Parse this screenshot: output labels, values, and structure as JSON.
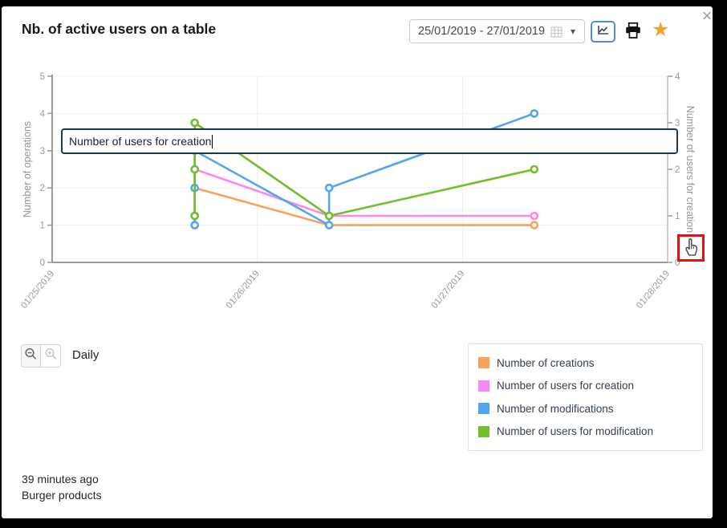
{
  "dialog": {
    "title": "Nb. of active users on a table",
    "date_range": {
      "value": "25/01/2019 - 27/01/2019"
    },
    "icons": {
      "dropdown_caret": "▾",
      "favorite_star": "★",
      "close": "×"
    }
  },
  "tooltip_box": {
    "text": "Number of users for creation"
  },
  "zoom_controls": {
    "granularity_label": "Daily"
  },
  "footer": {
    "last_updated": "39 minutes ago",
    "dataset": "Burger products"
  },
  "colors": {
    "accent_blue": "#4A90E2",
    "star_gold": "#F0A330",
    "red_highlight": "#E01212",
    "axis_text": "#9B9B9B",
    "axis_line": "#9A9A9A",
    "gridline": "#F0F0F0"
  },
  "chart_data": {
    "type": "line",
    "x_axis": {
      "tick_labels": [
        "01/25/2019",
        "01/26/2019",
        "01/27/2019",
        "01/28/2019"
      ],
      "range_days": [
        0,
        3
      ]
    },
    "y_left": {
      "label": "Number of operations",
      "min": 0,
      "max": 5,
      "ticks": [
        0,
        1,
        2,
        3,
        4,
        5
      ]
    },
    "y_right": {
      "label": "Number of users for creation",
      "min": 0,
      "max": 4,
      "ticks": [
        0,
        1,
        2,
        3,
        4
      ]
    },
    "grid": true,
    "legend_position": "bottom-right",
    "series": [
      {
        "name": "Number of creations",
        "color": "#F7A35C",
        "axis": "left",
        "points": [
          {
            "x": 0.695,
            "v": 1
          },
          {
            "x": 0.695,
            "v": 2
          },
          {
            "x": 1.35,
            "v": 1
          },
          {
            "x": 2.35,
            "v": 1
          }
        ]
      },
      {
        "name": "Number of users for creation",
        "color": "#FB87F0",
        "axis": "right",
        "points": [
          {
            "x": 0.695,
            "v": 1
          },
          {
            "x": 0.695,
            "v": 2
          },
          {
            "x": 1.35,
            "v": 1
          },
          {
            "x": 2.35,
            "v": 1
          }
        ]
      },
      {
        "name": "Number of modifications",
        "color": "#55A4F0",
        "axis": "left",
        "points": [
          {
            "x": 0.695,
            "v": 1
          },
          {
            "x": 0.695,
            "v": 2
          },
          {
            "x": 0.695,
            "v": 3
          },
          {
            "x": 1.35,
            "v": 1
          },
          {
            "x": 1.35,
            "v": 2
          },
          {
            "x": 2.35,
            "v": 4
          }
        ]
      },
      {
        "name": "Number of users for modification",
        "color": "#70BF2B",
        "axis": "right",
        "points": [
          {
            "x": 0.695,
            "v": 1
          },
          {
            "x": 0.695,
            "v": 2
          },
          {
            "x": 0.695,
            "v": 3
          },
          {
            "x": 1.35,
            "v": 1
          },
          {
            "x": 2.35,
            "v": 2
          }
        ]
      }
    ]
  }
}
